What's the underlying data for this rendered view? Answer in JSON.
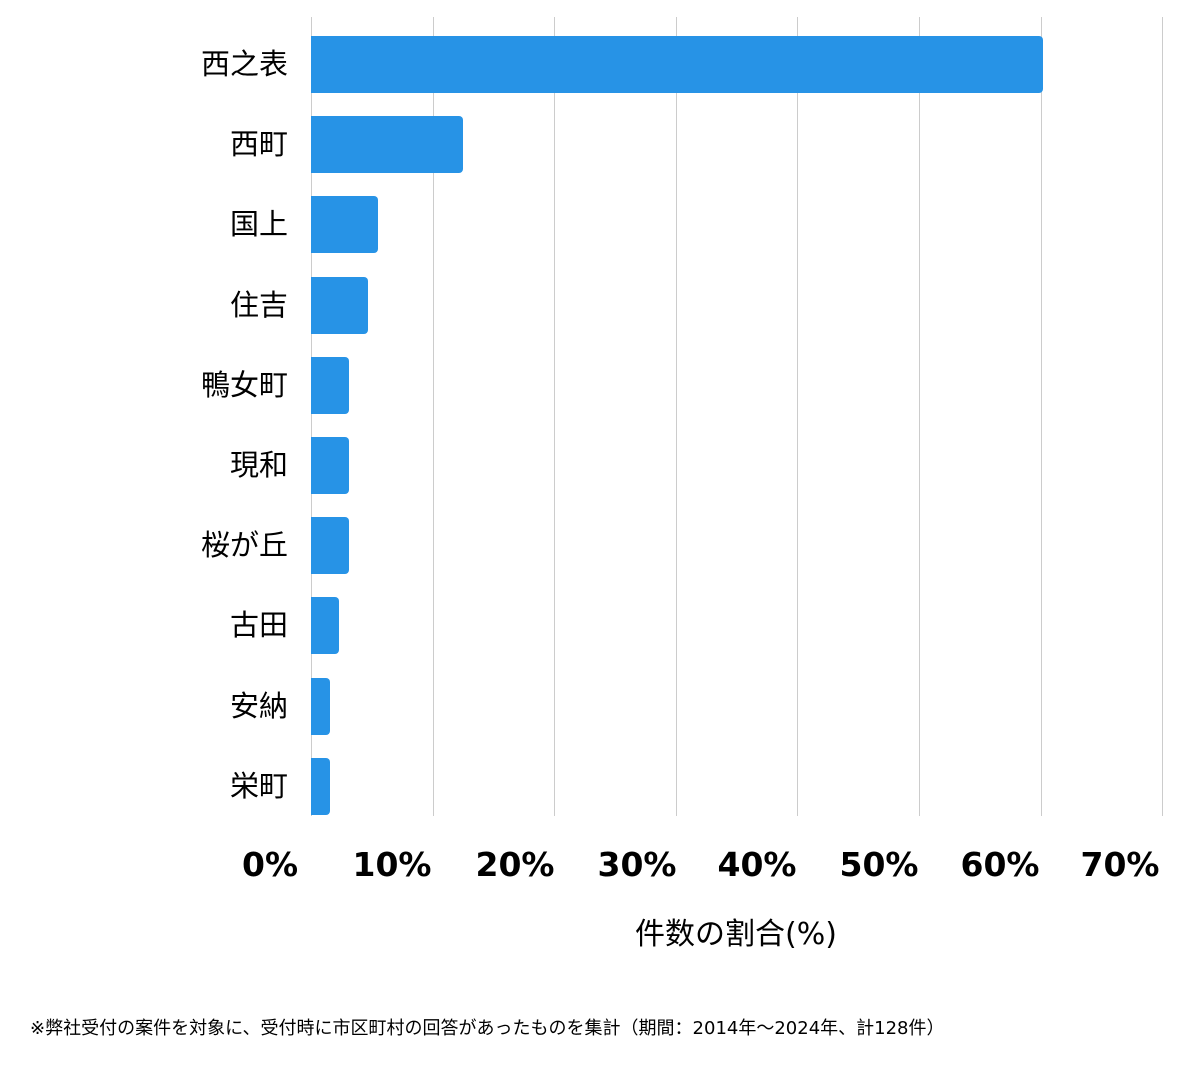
{
  "chart_data": {
    "type": "bar",
    "orientation": "horizontal",
    "title": "",
    "xlabel": "件数の割合(%)",
    "ylabel": "",
    "categories": [
      "西之表",
      "西町",
      "国上",
      "住吉",
      "鴨女町",
      "現和",
      "桜が丘",
      "古田",
      "安納",
      "栄町"
    ],
    "values": [
      60.2,
      12.5,
      5.5,
      4.7,
      3.1,
      3.1,
      3.1,
      2.3,
      1.6,
      1.6
    ],
    "xlim": [
      0,
      70
    ],
    "xticks": [
      "0%",
      "10%",
      "20%",
      "30%",
      "40%",
      "50%",
      "60%",
      "70%"
    ],
    "grid": true,
    "legend": null,
    "bar_color": "#2793e6",
    "footnote": "※弊社受付の案件を対象に、受付時に市区町村の回答があったものを集計（期間：2014年～2024年、計128件）"
  }
}
